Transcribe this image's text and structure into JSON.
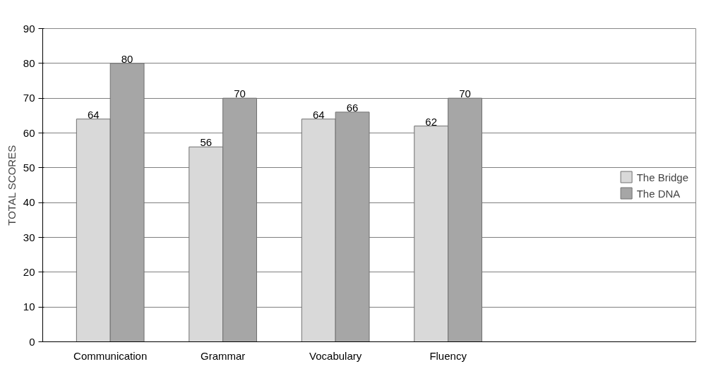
{
  "chart_data": {
    "type": "bar",
    "ylabel": "TOTAL SCORES",
    "categories": [
      "Communication",
      "Grammar",
      "Vocabulary",
      "Fluency"
    ],
    "series": [
      {
        "name": "The Bridge",
        "color": "#d9d9d9",
        "values": [
          64,
          56,
          64,
          62
        ]
      },
      {
        "name": "The DNA",
        "color": "#a6a6a6",
        "values": [
          80,
          70,
          66,
          70
        ]
      }
    ],
    "ylim": [
      0,
      90
    ],
    "yticks": [
      0,
      10,
      20,
      30,
      40,
      50,
      60,
      70,
      80,
      90
    ],
    "grid": "y",
    "legend": "right",
    "data_labels": true
  }
}
